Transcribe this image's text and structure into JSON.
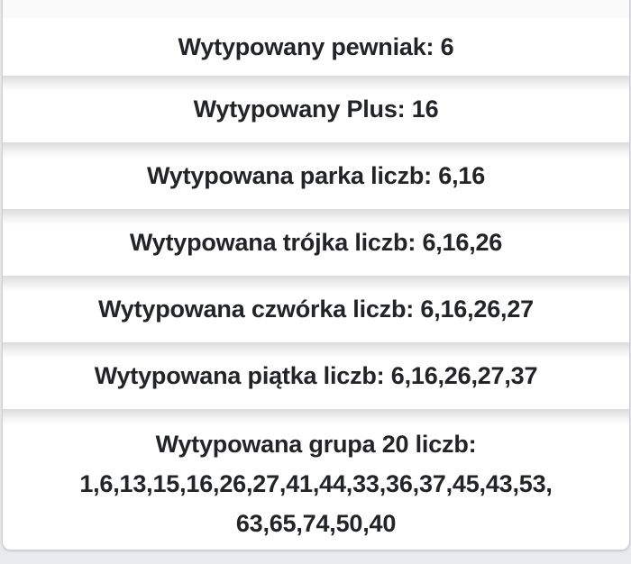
{
  "results": [
    {
      "label": "Wytypowany pewniak: 6"
    },
    {
      "label": "Wytypowany Plus: 16"
    },
    {
      "label": "Wytypowana parka liczb: 6,16"
    },
    {
      "label": "Wytypowana trójka liczb: 6,16,26"
    },
    {
      "label": "Wytypowana czwórka liczb: 6,16,26,27"
    },
    {
      "label": "Wytypowana piątka liczb: 6,16,26,27,37"
    }
  ],
  "group20": {
    "label": "Wytypowana grupa 20 liczb:",
    "line1": "1,6,13,15,16,26,27,41,44,33,36,37,45,43,53,",
    "line2": "63,65,74,50,40"
  }
}
